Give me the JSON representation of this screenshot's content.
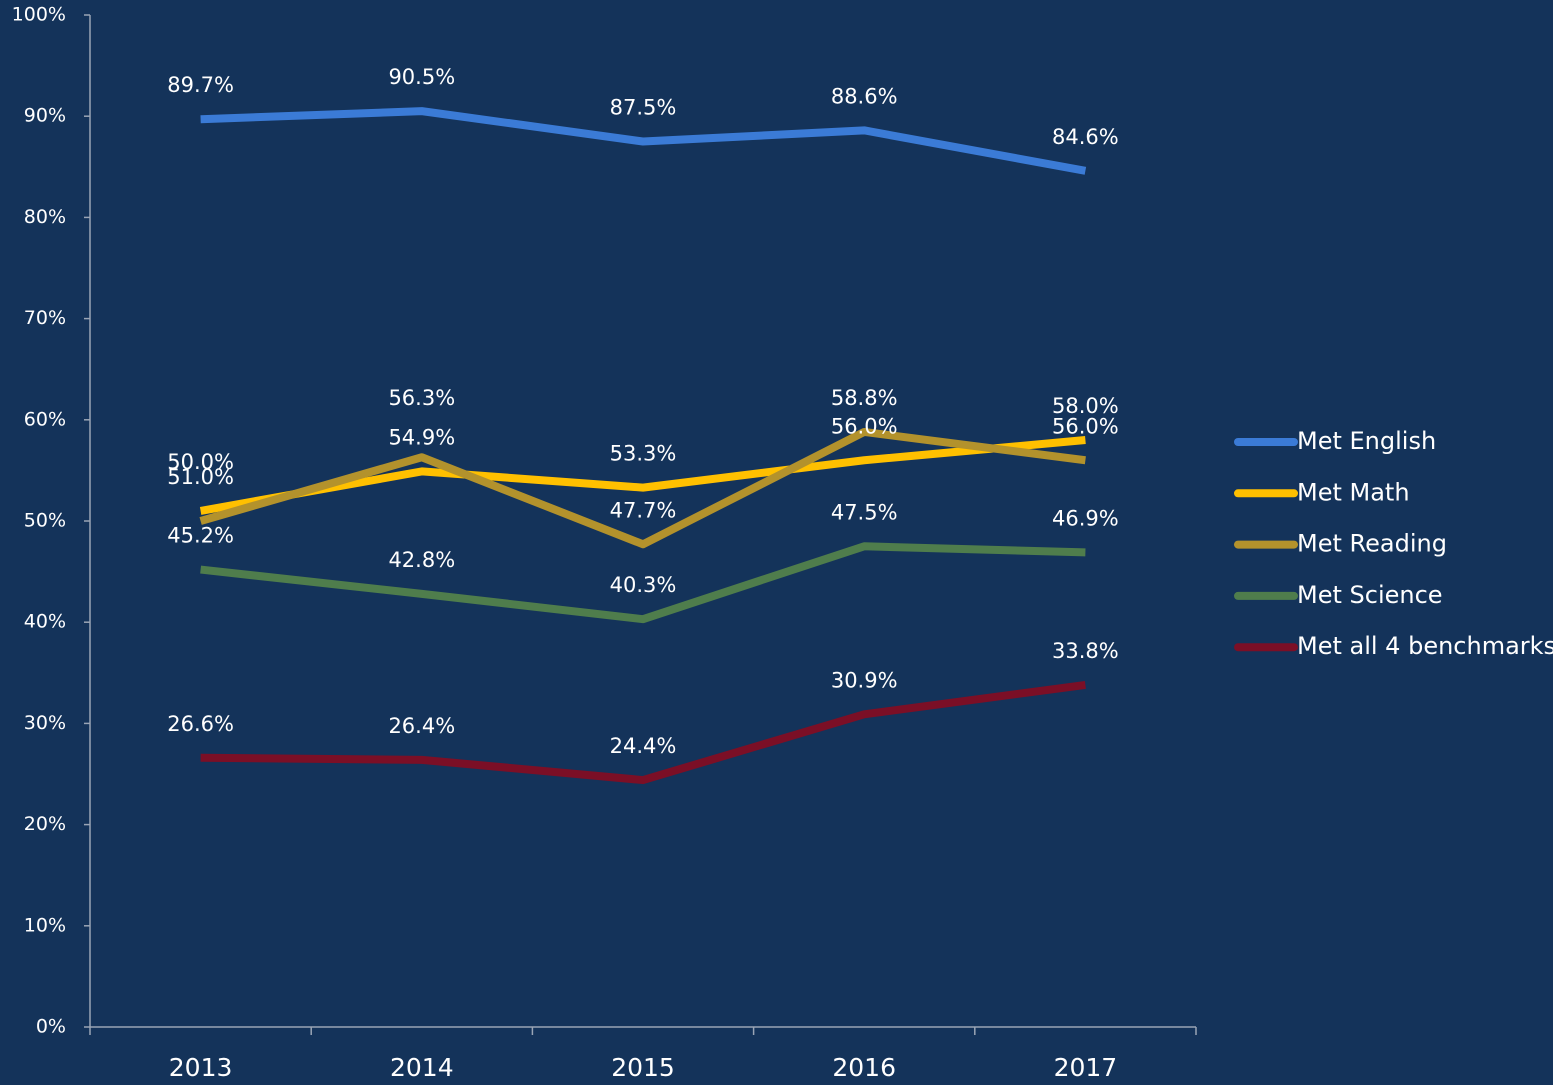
{
  "chart_data": {
    "type": "line",
    "categories": [
      "2013",
      "2014",
      "2015",
      "2016",
      "2017"
    ],
    "ylim": [
      0,
      100
    ],
    "yticks": [
      {
        "value": 0,
        "label": "0%"
      },
      {
        "value": 10,
        "label": "10%"
      },
      {
        "value": 20,
        "label": "20%"
      },
      {
        "value": 30,
        "label": "30%"
      },
      {
        "value": 40,
        "label": "40%"
      },
      {
        "value": 50,
        "label": "50%"
      },
      {
        "value": 60,
        "label": "60%"
      },
      {
        "value": 70,
        "label": "70%"
      },
      {
        "value": 80,
        "label": "80%"
      },
      {
        "value": 90,
        "label": "90%"
      },
      {
        "value": 100,
        "label": "100%"
      }
    ],
    "legend": "right",
    "series": [
      {
        "name": "Met English",
        "color": "#3b7bd6",
        "values": [
          89.7,
          90.5,
          87.5,
          88.6,
          84.6
        ],
        "value_labels": [
          "89.7%",
          "90.5%",
          "87.5%",
          "88.6%",
          "84.6%"
        ]
      },
      {
        "name": "Met Math",
        "color": "#ffc000",
        "values": [
          51.0,
          54.9,
          53.3,
          56.0,
          58.0
        ],
        "value_labels": [
          "51.0%",
          "54.9%",
          "53.3%",
          "56.0%",
          "58.0%"
        ]
      },
      {
        "name": "Met Reading",
        "color": "#b3922c",
        "values": [
          50.0,
          56.3,
          47.7,
          58.8,
          56.0
        ],
        "value_labels": [
          "50.0%",
          "56.3%",
          "47.7%",
          "58.8%",
          "56.0%"
        ]
      },
      {
        "name": "Met Science",
        "color": "#4f7d4c",
        "values": [
          45.2,
          42.8,
          40.3,
          47.5,
          46.9
        ],
        "value_labels": [
          "45.2%",
          "42.8%",
          "40.3%",
          "47.5%",
          "46.9%"
        ]
      },
      {
        "name": "Met all 4 benchmarks",
        "color": "#7b0f26",
        "values": [
          26.6,
          26.4,
          24.4,
          30.9,
          33.8
        ],
        "value_labels": [
          "26.6%",
          "26.4%",
          "24.4%",
          "30.9%",
          "33.8%"
        ]
      }
    ]
  }
}
